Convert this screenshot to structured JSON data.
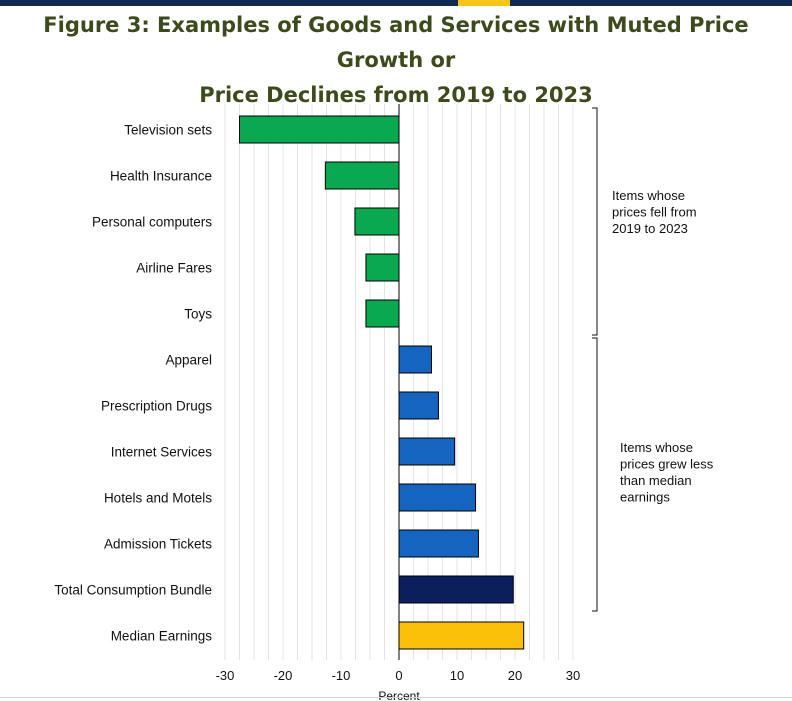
{
  "title_line1": "Figure 3: Examples of Goods and Services with Muted Price Growth or",
  "title_line2": "Price Declines from 2019 to 2023",
  "colors": {
    "declines": "#0aa84f",
    "muted": "#1565c0",
    "bundle": "#0b1f5c",
    "earnings": "#fbc10a",
    "header_bar": "#0f2a4f",
    "header_accent": "#f5c518"
  },
  "chart_data": {
    "type": "bar",
    "orientation": "horizontal",
    "categories": [
      "Television sets",
      "Health Insurance",
      "Personal computers",
      "Airline Fares",
      "Toys",
      "Apparel",
      "Prescription Drugs",
      "Internet Services",
      "Hotels and Motels",
      "Admission Tickets",
      "Total Consumption Bundle",
      "Median Earnings"
    ],
    "values": [
      -27.5,
      -12.7,
      -7.6,
      -5.7,
      -5.7,
      5.6,
      6.8,
      9.6,
      13.2,
      13.7,
      19.7,
      21.5
    ],
    "bar_colors": [
      "#0aa84f",
      "#0aa84f",
      "#0aa84f",
      "#0aa84f",
      "#0aa84f",
      "#1565c0",
      "#1565c0",
      "#1565c0",
      "#1565c0",
      "#1565c0",
      "#0b1f5c",
      "#fbc10a"
    ],
    "xlim": [
      -30,
      30
    ],
    "xticks": [
      -30,
      -20,
      -10,
      0,
      10,
      20,
      30
    ],
    "xlabel": "Percent",
    "grid": "vertical minor gridlines",
    "annotations": [
      {
        "lines": [
          "Items whose",
          "prices fell from",
          "2019 to 2023"
        ],
        "from_category": "Television sets",
        "to_category": "Toys"
      },
      {
        "lines": [
          "Items whose",
          "prices grew less",
          "than median",
          "earnings"
        ],
        "from_category": "Apparel",
        "to_category": "Total Consumption Bundle"
      }
    ]
  }
}
